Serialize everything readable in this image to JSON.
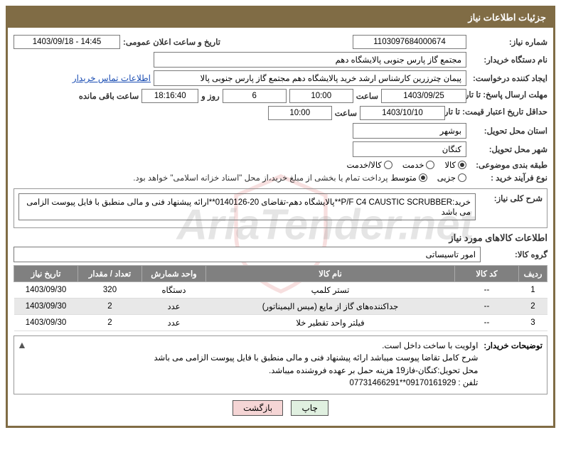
{
  "panel_title": "جزئیات اطلاعات نیاز",
  "row1": {
    "need_no_label": "شماره نیاز:",
    "need_no": "1103097684000674",
    "announce_label": "تاریخ و ساعت اعلان عمومی:",
    "announce_value": "1403/09/18 - 14:45"
  },
  "row2": {
    "buyer_label": "نام دستگاه خریدار:",
    "buyer_value": "مجتمع گاز پارس جنوبی  پالایشگاه دهم"
  },
  "row3": {
    "requester_label": "ایجاد کننده درخواست:",
    "requester_value": "پیمان چترزرین کارشناس ارشد خرید پالایشگاه دهم مجتمع گاز پارس جنوبی  پالا",
    "contact_link": "اطلاعات تماس خریدار"
  },
  "row4": {
    "deadline_label": "مهلت ارسال پاسخ: تا تاریخ:",
    "deadline_date": "1403/09/25",
    "time_label": "ساعت",
    "deadline_time": "10:00",
    "days": "6",
    "days_label": "روز و",
    "hms": "18:16:40",
    "remaining_label": "ساعت باقی مانده"
  },
  "row5": {
    "validity_label": "حداقل تاریخ اعتبار قیمت: تا تاریخ:",
    "validity_date": "1403/10/10",
    "time_label": "ساعت",
    "validity_time": "10:00"
  },
  "row6": {
    "province_label": "استان محل تحویل:",
    "province": "بوشهر"
  },
  "row7": {
    "city_label": "شهر محل تحویل:",
    "city": "کنگان"
  },
  "row8": {
    "category_label": "طبقه بندی موضوعی:",
    "opts": [
      "کالا",
      "خدمت",
      "کالا/خدمت"
    ],
    "selected": 0
  },
  "row9": {
    "process_label": "نوع فرآیند خرید :",
    "opts": [
      "جزیی",
      "متوسط"
    ],
    "selected": 1,
    "note": "پرداخت تمام یا بخشی از مبلغ خرید،از محل \"اسناد خزانه اسلامی\" خواهد بود."
  },
  "general": {
    "label": "شرح کلی نیاز:",
    "text": "خرید:P/F C4 CAUSTIC SCRUBBER**پالایشگاه دهم-تقاضای 20-0140126**ارائه پیشنهاد فنی و مالی منطبق با فایل پیوست الزامی می باشد"
  },
  "goods_section": "اطلاعات کالاهای مورد نیاز",
  "group": {
    "label": "گروه کالا:",
    "value": "امور تاسیساتی"
  },
  "table": {
    "headers": [
      "ردیف",
      "کد کالا",
      "نام کالا",
      "واحد شمارش",
      "تعداد / مقدار",
      "تاریخ نیاز"
    ],
    "rows": [
      [
        "1",
        "--",
        "تستر کلمپ",
        "دستگاه",
        "320",
        "1403/09/30"
      ],
      [
        "2",
        "--",
        "جداکننده‌های گاز از مایع (میس الیمیناتور)",
        "عدد",
        "2",
        "1403/09/30"
      ],
      [
        "3",
        "--",
        "فیلتر واحد تقطیر خلا",
        "عدد",
        "2",
        "1403/09/30"
      ]
    ]
  },
  "buyer_notes": {
    "label": "توضیحات خریدار:",
    "lines": [
      "اولویت با ساخت داخل است.",
      "شرح کامل تقاضا پیوست میباشد ارائه پیشنهاد فنی و مالی منطبق با فایل پیوست الزامی می باشد",
      "محل تحویل:کنگان-فاز19 هزینه حمل بر عهده فروشنده میباشد.",
      "تلفن : 09170161929**07731466291"
    ]
  },
  "buttons": {
    "print": "چاپ",
    "back": "بازگشت"
  },
  "colors": {
    "panel_border": "#806c45",
    "header_bg": "#806c45",
    "table_header": "#808080"
  }
}
